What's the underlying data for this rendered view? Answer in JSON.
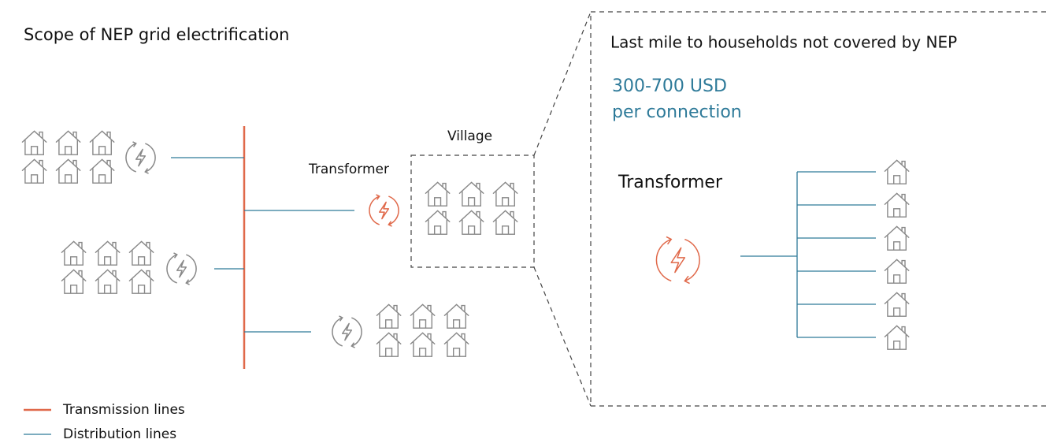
{
  "title": "Scope of NEP grid electrification",
  "labels": {
    "transformer": "Transformer",
    "village": "Village"
  },
  "callout": {
    "title": "Last mile to households not covered by NEP",
    "cost": [
      "300-700 USD",
      "per connection"
    ],
    "transformer": "Transformer"
  },
  "legend": [
    {
      "label": "Transmission lines",
      "color": "#e0694a"
    },
    {
      "label": "Distribution lines",
      "color": "#2e7a99"
    }
  ]
}
